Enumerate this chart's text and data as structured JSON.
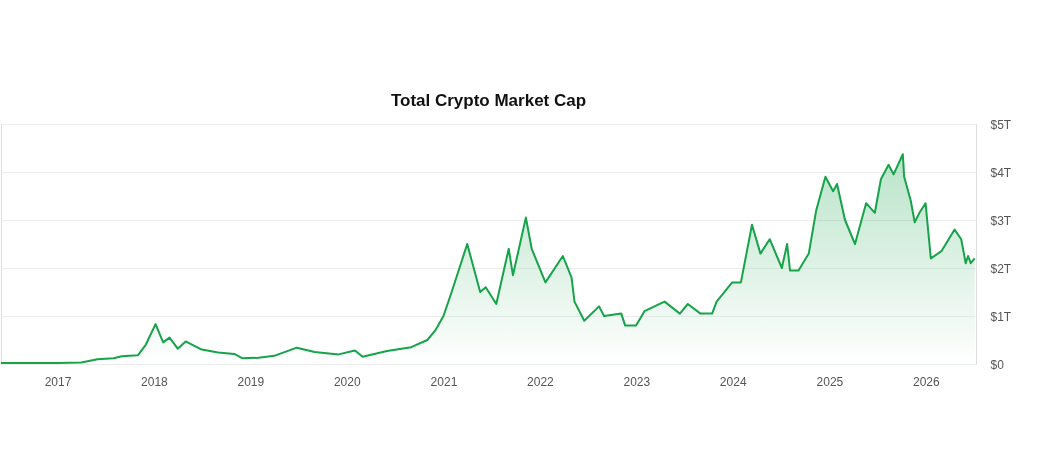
{
  "chart_data": {
    "type": "area",
    "title": "Total Crypto Market Cap",
    "x": [
      "2016-06",
      "2017-01",
      "2017-04",
      "2017-06",
      "2017-08",
      "2017-09",
      "2017-11",
      "2017-12",
      "2018-01-07",
      "2018-02-05",
      "2018-03",
      "2018-04",
      "2018-05",
      "2018-07",
      "2018-09",
      "2018-11",
      "2018-12",
      "2019-02",
      "2019-04",
      "2019-06-26",
      "2019-09",
      "2019-12",
      "2020-02",
      "2020-03",
      "2020-06",
      "2020-09",
      "2020-11",
      "2020-12",
      "2021-01",
      "2021-02",
      "2021-04",
      "2021-05-20",
      "2021-06-10",
      "2021-07-20",
      "2021-09-05",
      "2021-09-21",
      "2021-11-09",
      "2021-12",
      "2022-01-22",
      "2022-03-29",
      "2022-05-01",
      "2022-05-12",
      "2022-06-18",
      "2022-08-13",
      "2022-09",
      "2022-11-05",
      "2022-11-20",
      "2022-12-31",
      "2023-02",
      "2023-04-18",
      "2023-06-15",
      "2023-07-15",
      "2023-09",
      "2023-10-15",
      "2023-11",
      "2023-12-30",
      "2024-02-01",
      "2024-03-14",
      "2024-04-15",
      "2024-05-20",
      "2024-07-05",
      "2024-07-25",
      "2024-08-05",
      "2024-09-06",
      "2024-10-15",
      "2024-11-12",
      "2024-12-17",
      "2025-01-15",
      "2025-01-30",
      "2025-03-01",
      "2025-04-08",
      "2025-05-20",
      "2025-06-22",
      "2025-07-15",
      "2025-08-13",
      "2025-09",
      "2025-10-06",
      "2025-10-11",
      "2025-11-05",
      "2025-11-20",
      "2025-12-08",
      "2025-12-31",
      "2026-01-20",
      "2026-03-01",
      "2026-04-20",
      "2026-05-15",
      "2026-06-01",
      "2026-06-10",
      "2026-06-20",
      "2026-07-05"
    ],
    "series": [
      {
        "color": "#16a34a",
        "values": [
          0.02,
          0.02,
          0.03,
          0.1,
          0.12,
          0.16,
          0.18,
          0.4,
          0.83,
          0.45,
          0.55,
          0.32,
          0.47,
          0.3,
          0.24,
          0.21,
          0.12,
          0.13,
          0.17,
          0.34,
          0.25,
          0.2,
          0.28,
          0.15,
          0.27,
          0.35,
          0.5,
          0.7,
          1.0,
          1.5,
          2.5,
          1.5,
          1.6,
          1.25,
          2.4,
          1.85,
          3.05,
          2.4,
          1.7,
          2.25,
          1.8,
          1.3,
          0.9,
          1.2,
          1.0,
          1.05,
          0.8,
          0.8,
          1.1,
          1.3,
          1.05,
          1.25,
          1.05,
          1.05,
          1.3,
          1.7,
          1.7,
          2.9,
          2.3,
          2.6,
          2.0,
          2.5,
          1.95,
          1.95,
          2.3,
          3.2,
          3.9,
          3.6,
          3.75,
          3.0,
          2.5,
          3.35,
          3.15,
          3.85,
          4.15,
          3.95,
          4.37,
          3.9,
          3.4,
          2.95,
          3.15,
          3.35,
          2.2,
          2.35,
          2.8,
          2.6,
          2.1,
          2.25,
          2.1,
          2.2
        ]
      }
    ],
    "xlim": [
      "2016-06",
      "2026-07-10"
    ],
    "xticks": [
      "2017",
      "2018",
      "2019",
      "2020",
      "2021",
      "2022",
      "2023",
      "2024",
      "2025",
      "2026"
    ],
    "ylim": [
      0,
      5
    ],
    "yticks": [
      {
        "value": 0,
        "label": "$0"
      },
      {
        "value": 1,
        "label": "$1T"
      },
      {
        "value": 2,
        "label": "$2T"
      },
      {
        "value": 3,
        "label": "$3T"
      },
      {
        "value": 4,
        "label": "$4T"
      },
      {
        "value": 5,
        "label": "$5T"
      }
    ],
    "grid": "y"
  }
}
